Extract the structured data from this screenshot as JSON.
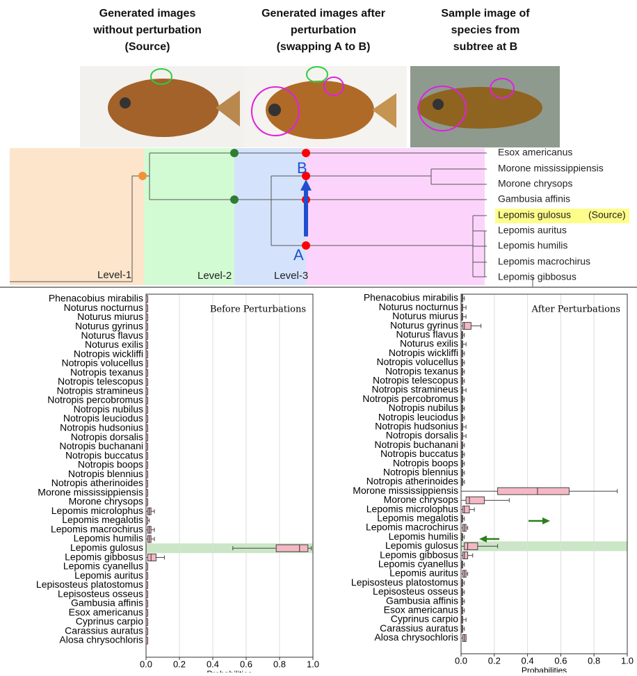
{
  "headers": [
    [
      "Generated images",
      "without perturbation",
      "(Source)"
    ],
    [
      "Generated images after",
      "perturbation",
      "(swapping A to B)"
    ],
    [
      "Sample image of",
      "species from",
      "subtree at B"
    ]
  ],
  "tree": {
    "leaves": [
      "Esox americanus",
      "Morone mississippiensis",
      "Morone chrysops",
      "Gambusia affinis",
      "Lepomis gulosus",
      "Lepomis auritus",
      "Lepomis humilis",
      "Lepomis macrochirus",
      "Lepomis gibbosus"
    ],
    "source_tag": "(Source)",
    "node_labels": [
      "A",
      "B"
    ],
    "levels": [
      "Level-1",
      "Level-2",
      "Level-3"
    ]
  },
  "chart_data": [
    {
      "type": "box",
      "title": "Before Perturbations",
      "xlabel": "Probabilities",
      "xlim": [
        0,
        1
      ],
      "xticks": [
        {
          "value": 0,
          "label": "0.0"
        },
        0.2,
        0.4,
        0.6,
        0.8,
        {
          "value": 1,
          "label": "1.0"
        }
      ],
      "grid": true,
      "highlight": "Lepomis gulosus",
      "color": "#f4b8c4",
      "categories": [
        "Phenacobius mirabilis",
        "Noturus nocturnus",
        "Noturus miurus",
        "Noturus gyrinus",
        "Noturus flavus",
        "Noturus exilis",
        "Notropis wickliffi",
        "Notropis volucellus",
        "Notropis texanus",
        "Notropis telescopus",
        "Notropis stramineus",
        "Notropis percobromus",
        "Notropis nubilus",
        "Notropis leuciodus",
        "Notropis hudsonius",
        "Notropis dorsalis",
        "Notropis buchanani",
        "Notropis buccatus",
        "Notropis boops",
        "Notropis blennius",
        "Notropis atherinoides",
        "Morone mississippiensis",
        "Morone chrysops",
        "Lepomis microlophus",
        "Lepomis megalotis",
        "Lepomis macrochirus",
        "Lepomis humilis",
        "Lepomis gulosus",
        "Lepomis gibbosus",
        "Lepomis cyanellus",
        "Lepomis auritus",
        "Lepisosteus platostomus",
        "Lepisosteus osseus",
        "Gambusia affinis",
        "Esox americanus",
        "Cyprinus carpio",
        "Carassius auratus",
        "Alosa chrysochloris"
      ],
      "min": [
        0,
        0,
        0,
        0,
        0,
        0,
        0,
        0,
        0,
        0,
        0,
        0,
        0,
        0,
        0,
        0,
        0,
        0,
        0,
        0,
        0,
        0,
        0,
        0,
        0,
        0,
        0,
        0.52,
        0,
        0,
        0,
        0,
        0,
        0,
        0,
        0,
        0,
        0
      ],
      "q1": [
        0,
        0,
        0,
        0,
        0,
        0,
        0,
        0,
        0,
        0,
        0,
        0,
        0,
        0,
        0,
        0,
        0,
        0,
        0,
        0,
        0,
        0,
        0,
        0.01,
        0,
        0.01,
        0.01,
        0.78,
        0.01,
        0,
        0,
        0,
        0,
        0,
        0,
        0,
        0,
        0
      ],
      "median": [
        0,
        0,
        0,
        0,
        0,
        0,
        0,
        0,
        0,
        0,
        0,
        0,
        0,
        0,
        0,
        0,
        0,
        0,
        0,
        0,
        0,
        0,
        0,
        0.02,
        0,
        0.02,
        0.02,
        0.92,
        0.03,
        0,
        0,
        0,
        0,
        0,
        0,
        0,
        0,
        0
      ],
      "q3": [
        0.01,
        0.01,
        0.01,
        0.01,
        0.01,
        0.01,
        0.01,
        0.01,
        0.01,
        0.01,
        0.01,
        0.01,
        0.01,
        0.01,
        0.01,
        0.01,
        0.01,
        0.01,
        0.01,
        0.01,
        0.01,
        0.01,
        0.01,
        0.03,
        0.01,
        0.03,
        0.03,
        0.97,
        0.06,
        0.01,
        0.01,
        0.01,
        0.01,
        0.01,
        0.01,
        0.01,
        0.01,
        0.01
      ],
      "max": [
        0.01,
        0.01,
        0.01,
        0.01,
        0.01,
        0.01,
        0.01,
        0.01,
        0.01,
        0.01,
        0.01,
        0.01,
        0.01,
        0.01,
        0.01,
        0.01,
        0.01,
        0.01,
        0.01,
        0.01,
        0.01,
        0.01,
        0.01,
        0.05,
        0.02,
        0.05,
        0.05,
        0.99,
        0.11,
        0.01,
        0.01,
        0.01,
        0.01,
        0.01,
        0.01,
        0.01,
        0.01,
        0.01
      ]
    },
    {
      "type": "box",
      "title": "After Perturbations",
      "xlabel": "Probabilities",
      "xlim": [
        0,
        1
      ],
      "xticks": [
        {
          "value": 0,
          "label": "0.0"
        },
        0.2,
        0.4,
        0.6,
        0.8,
        {
          "value": 1,
          "label": "1.0"
        }
      ],
      "grid": true,
      "highlight": "Lepomis gulosus",
      "color": "#f4b8c4",
      "categories": [
        "Phenacobius mirabilis",
        "Noturus nocturnus",
        "Noturus miurus",
        "Noturus gyrinus",
        "Noturus flavus",
        "Noturus exilis",
        "Notropis wickliffi",
        "Notropis volucellus",
        "Notropis texanus",
        "Notropis telescopus",
        "Notropis stramineus",
        "Notropis percobromus",
        "Notropis nubilus",
        "Notropis leuciodus",
        "Notropis hudsonius",
        "Notropis dorsalis",
        "Notropis buchanani",
        "Notropis buccatus",
        "Notropis boops",
        "Notropis blennius",
        "Notropis atherinoides",
        "Morone mississippiensis",
        "Morone chrysops",
        "Lepomis microlophus",
        "Lepomis megalotis",
        "Lepomis macrochirus",
        "Lepomis humilis",
        "Lepomis gulosus",
        "Lepomis gibbosus",
        "Lepomis cyanellus",
        "Lepomis auritus",
        "Lepisosteus platostomus",
        "Lepisosteus osseus",
        "Gambusia affinis",
        "Esox americanus",
        "Cyprinus carpio",
        "Carassius auratus",
        "Alosa chrysochloris"
      ],
      "min": [
        0,
        0,
        0,
        0,
        0,
        0,
        0,
        0,
        0,
        0,
        0,
        0,
        0,
        0,
        0,
        0,
        0,
        0,
        0,
        0,
        0,
        0,
        0,
        0,
        0,
        0,
        0,
        0,
        0,
        0,
        0,
        0,
        0,
        0,
        0,
        0,
        0,
        0
      ],
      "q1": [
        0,
        0,
        0,
        0.01,
        0,
        0,
        0,
        0,
        0,
        0,
        0,
        0,
        0,
        0,
        0,
        0,
        0,
        0,
        0,
        0,
        0,
        0.22,
        0.03,
        0.01,
        0,
        0.01,
        0,
        0.02,
        0.01,
        0,
        0.01,
        0,
        0,
        0,
        0,
        0,
        0,
        0.01
      ],
      "median": [
        0.005,
        0.005,
        0.005,
        0.02,
        0.005,
        0.005,
        0.005,
        0.005,
        0.005,
        0.005,
        0.005,
        0.005,
        0.005,
        0.005,
        0.005,
        0.005,
        0.005,
        0.005,
        0.005,
        0.005,
        0.005,
        0.46,
        0.05,
        0.02,
        0.005,
        0.02,
        0.005,
        0.04,
        0.02,
        0.005,
        0.02,
        0.005,
        0.005,
        0.005,
        0.005,
        0.005,
        0.005,
        0.02
      ],
      "q3": [
        0.01,
        0.01,
        0.01,
        0.06,
        0.01,
        0.01,
        0.01,
        0.01,
        0.01,
        0.01,
        0.01,
        0.01,
        0.01,
        0.01,
        0.01,
        0.01,
        0.01,
        0.01,
        0.01,
        0.01,
        0.01,
        0.65,
        0.14,
        0.05,
        0.01,
        0.03,
        0.01,
        0.1,
        0.04,
        0.01,
        0.03,
        0.01,
        0.01,
        0.01,
        0.01,
        0.01,
        0.01,
        0.03
      ],
      "max": [
        0.02,
        0.03,
        0.03,
        0.12,
        0.02,
        0.03,
        0.02,
        0.02,
        0.02,
        0.02,
        0.03,
        0.02,
        0.02,
        0.02,
        0.03,
        0.03,
        0.02,
        0.02,
        0.02,
        0.02,
        0.02,
        0.94,
        0.29,
        0.08,
        0.02,
        0.04,
        0.02,
        0.22,
        0.07,
        0.02,
        0.04,
        0.02,
        0.02,
        0.02,
        0.02,
        0.03,
        0.02,
        0.03
      ]
    }
  ]
}
